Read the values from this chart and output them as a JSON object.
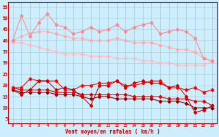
{
  "x": [
    0,
    1,
    2,
    3,
    4,
    5,
    6,
    7,
    8,
    9,
    10,
    11,
    12,
    13,
    14,
    15,
    16,
    17,
    18,
    19,
    20,
    21,
    22,
    23
  ],
  "line_pink_jagged": [
    40,
    51,
    42,
    48,
    52,
    47,
    46,
    43,
    44,
    46,
    44,
    45,
    47,
    44,
    46,
    47,
    48,
    43,
    44,
    45,
    44,
    41,
    32,
    31
  ],
  "line_pink_smooth1": [
    40,
    42,
    43,
    44,
    44,
    43,
    42,
    41,
    41,
    40,
    40,
    40,
    41,
    40,
    39,
    39,
    39,
    38,
    37,
    36,
    36,
    35,
    32,
    31
  ],
  "line_pink_smooth2": [
    39,
    39,
    38,
    37,
    36,
    35,
    34,
    34,
    34,
    33,
    33,
    33,
    32,
    32,
    32,
    31,
    31,
    30,
    30,
    29,
    29,
    29,
    29,
    31
  ],
  "line_red_jagged1": [
    19,
    19,
    23,
    22,
    22,
    22,
    18,
    18,
    20,
    20,
    21,
    21,
    22,
    20,
    20,
    21,
    22,
    22,
    19,
    19,
    18,
    19,
    17,
    18
  ],
  "line_red_jagged2": [
    18,
    16,
    18,
    22,
    22,
    18,
    19,
    18,
    15,
    11,
    20,
    20,
    22,
    19,
    21,
    22,
    21,
    21,
    19,
    20,
    15,
    8,
    9,
    11
  ],
  "line_red_smooth1": [
    19,
    18,
    18,
    18,
    18,
    17,
    17,
    17,
    16,
    16,
    16,
    16,
    16,
    16,
    15,
    15,
    15,
    15,
    14,
    14,
    14,
    13,
    13,
    11
  ],
  "line_red_smooth2": [
    18,
    17,
    17,
    17,
    17,
    16,
    16,
    16,
    15,
    14,
    15,
    15,
    14,
    14,
    14,
    14,
    14,
    13,
    13,
    13,
    12,
    10,
    10,
    10
  ],
  "bg_color": "#cceeff",
  "grid_color": "#aacccc",
  "col_pink_jagged": "#ff8888",
  "col_pink_smooth1": "#ffaaaa",
  "col_pink_smooth2": "#ffbbbb",
  "col_red_jagged1": "#ff0000",
  "col_red_jagged2": "#cc0000",
  "col_red_smooth1": "#dd0000",
  "col_red_smooth2": "#880000",
  "xlabel": "Vent moyen/en rafales ( km/h )",
  "ylabel_ticks": [
    5,
    10,
    15,
    20,
    25,
    30,
    35,
    40,
    45,
    50,
    55
  ],
  "xlim": [
    -0.5,
    23.5
  ],
  "ylim": [
    3,
    57
  ]
}
